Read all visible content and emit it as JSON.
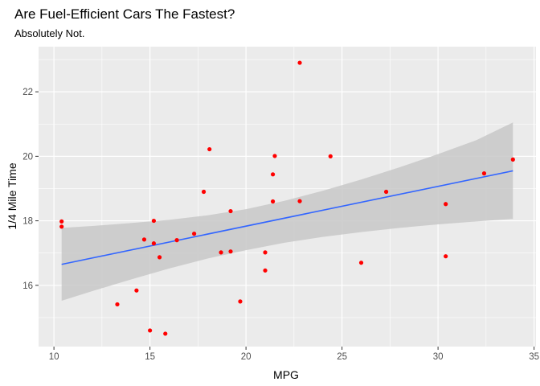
{
  "chart_data": {
    "type": "scatter",
    "title": "Are Fuel-Efficient Cars The Fastest?",
    "subtitle": "Absolutely Not.",
    "xlabel": "MPG",
    "ylabel": "1/4 Mile Time",
    "xlim": [
      9.2,
      35.1
    ],
    "ylim": [
      14.1,
      23.4
    ],
    "x_ticks": [
      10,
      15,
      20,
      25,
      30,
      35
    ],
    "y_ticks": [
      16,
      18,
      20,
      22
    ],
    "grid": true,
    "legend": "none",
    "colors": {
      "panel": "#ebebeb",
      "grid": "#ffffff",
      "point": "#ff0000",
      "line": "#3366ff",
      "ribbon": "#c8c8c8"
    },
    "points": [
      {
        "x": 21.0,
        "y": 16.46
      },
      {
        "x": 21.0,
        "y": 17.02
      },
      {
        "x": 22.8,
        "y": 18.61
      },
      {
        "x": 21.4,
        "y": 19.44
      },
      {
        "x": 18.7,
        "y": 17.02
      },
      {
        "x": 18.1,
        "y": 20.22
      },
      {
        "x": 14.3,
        "y": 15.84
      },
      {
        "x": 24.4,
        "y": 20.0
      },
      {
        "x": 22.8,
        "y": 22.9
      },
      {
        "x": 19.2,
        "y": 18.3
      },
      {
        "x": 17.8,
        "y": 18.9
      },
      {
        "x": 16.4,
        "y": 17.4
      },
      {
        "x": 17.3,
        "y": 17.6
      },
      {
        "x": 15.2,
        "y": 18.0
      },
      {
        "x": 10.4,
        "y": 17.98
      },
      {
        "x": 10.4,
        "y": 17.82
      },
      {
        "x": 14.7,
        "y": 17.42
      },
      {
        "x": 32.4,
        "y": 19.47
      },
      {
        "x": 30.4,
        "y": 18.52
      },
      {
        "x": 33.9,
        "y": 19.9
      },
      {
        "x": 21.5,
        "y": 20.01
      },
      {
        "x": 15.5,
        "y": 16.87
      },
      {
        "x": 15.2,
        "y": 17.3
      },
      {
        "x": 13.3,
        "y": 15.41
      },
      {
        "x": 19.2,
        "y": 17.05
      },
      {
        "x": 27.3,
        "y": 18.9
      },
      {
        "x": 26.0,
        "y": 16.7
      },
      {
        "x": 30.4,
        "y": 16.9
      },
      {
        "x": 15.8,
        "y": 14.5
      },
      {
        "x": 19.7,
        "y": 15.5
      },
      {
        "x": 15.0,
        "y": 14.6
      },
      {
        "x": 21.4,
        "y": 18.6
      }
    ],
    "smooth": {
      "method": "lm",
      "x": [
        10.4,
        33.9
      ],
      "y": [
        16.65,
        19.55
      ],
      "ribbon": [
        {
          "x": 10.4,
          "lo": 15.52,
          "hi": 17.78
        },
        {
          "x": 12.0,
          "lo": 15.82,
          "hi": 17.84
        },
        {
          "x": 14.0,
          "lo": 16.18,
          "hi": 17.93
        },
        {
          "x": 16.0,
          "lo": 16.52,
          "hi": 18.03
        },
        {
          "x": 18.0,
          "lo": 16.83,
          "hi": 18.17
        },
        {
          "x": 20.0,
          "lo": 17.09,
          "hi": 18.36
        },
        {
          "x": 22.0,
          "lo": 17.32,
          "hi": 18.62
        },
        {
          "x": 24.0,
          "lo": 17.5,
          "hi": 18.93
        },
        {
          "x": 26.0,
          "lo": 17.65,
          "hi": 19.28
        },
        {
          "x": 28.0,
          "lo": 17.78,
          "hi": 19.66
        },
        {
          "x": 30.0,
          "lo": 17.89,
          "hi": 20.07
        },
        {
          "x": 32.0,
          "lo": 17.98,
          "hi": 20.5
        },
        {
          "x": 33.9,
          "lo": 18.06,
          "hi": 21.05
        }
      ]
    }
  }
}
